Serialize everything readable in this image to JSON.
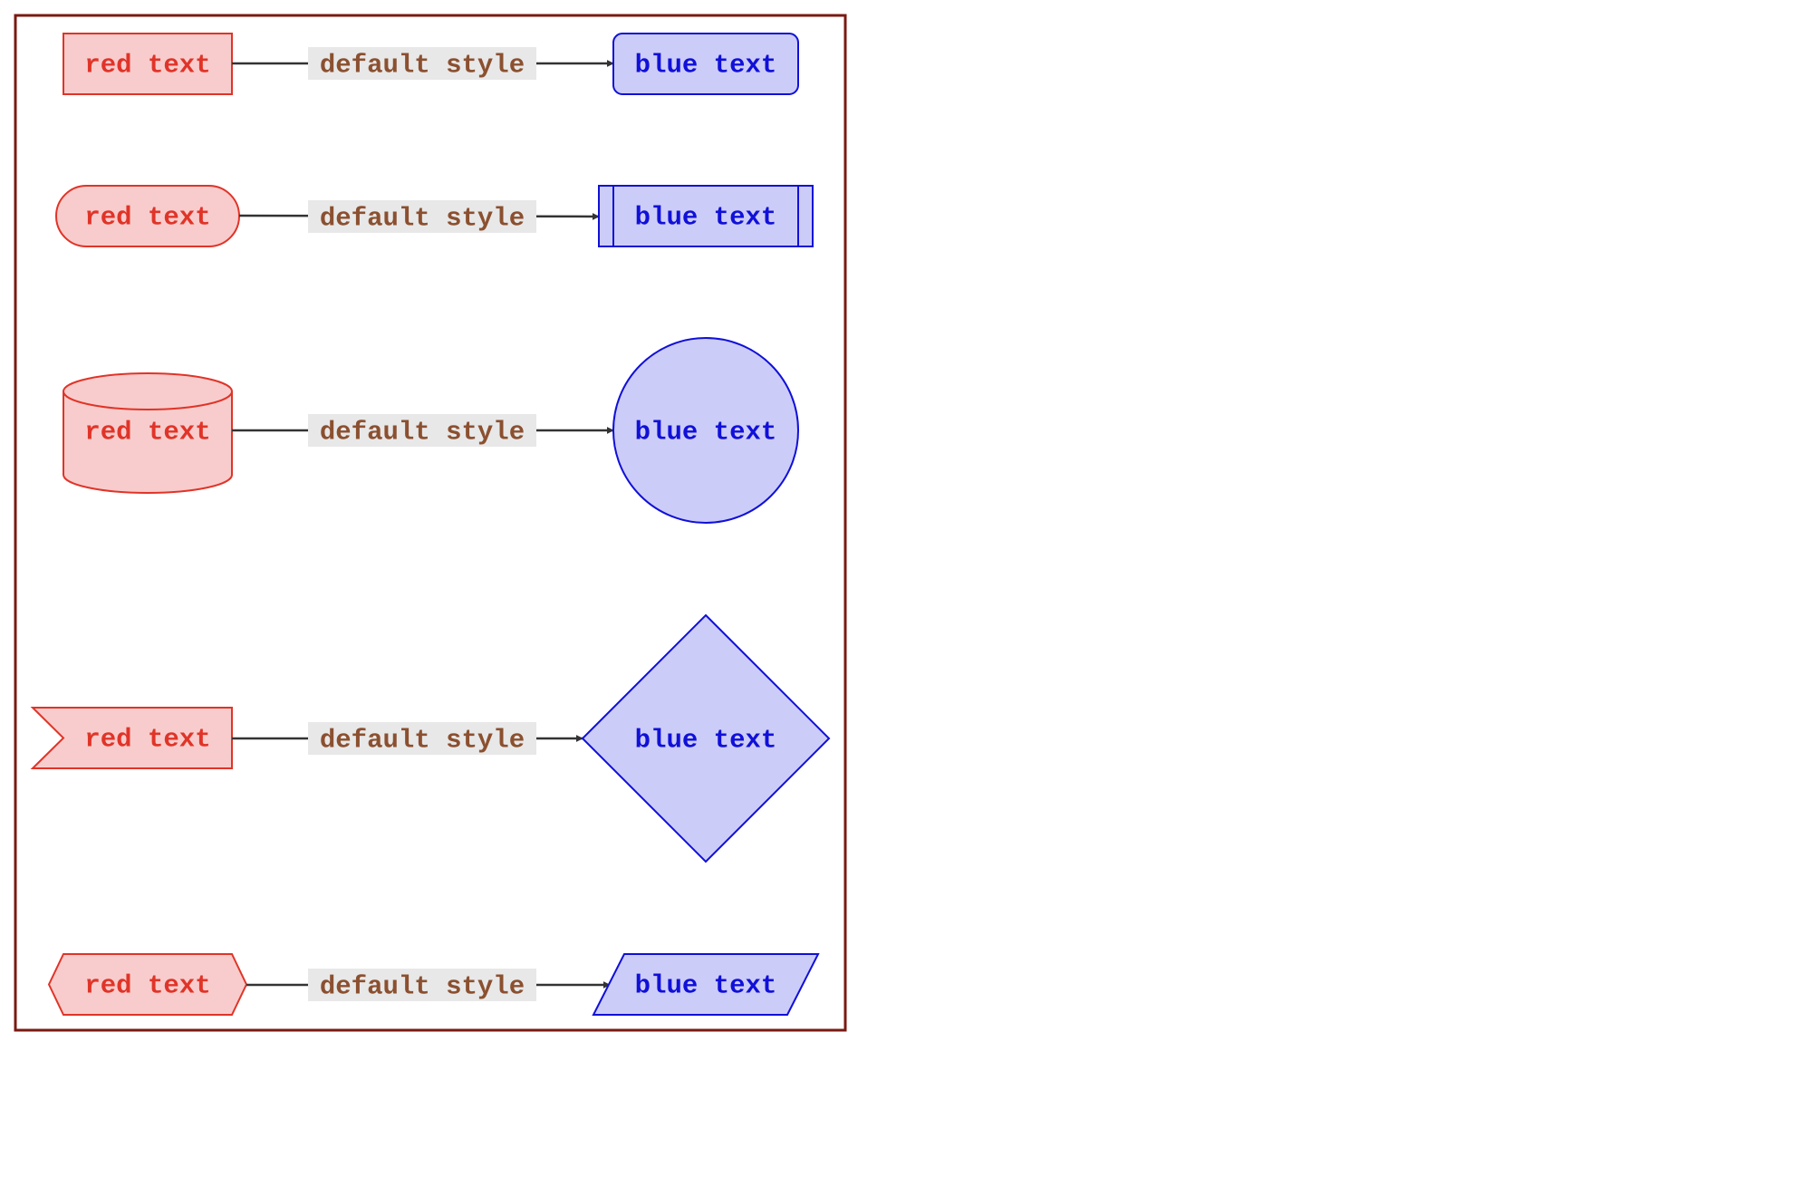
{
  "colors": {
    "frame_border": "#7a1a12",
    "red_fill": "#f8cccc",
    "red_stroke": "#e03428",
    "red_text": "#e03428",
    "blue_fill": "#ccccf8",
    "blue_stroke": "#1010d8",
    "blue_text": "#1010d8",
    "edge_line": "#333333",
    "edge_label_bg": "#e8e8e8",
    "edge_label_text": "#8b5030"
  },
  "rows": [
    {
      "source": {
        "label": "red text",
        "shape": "rectangle"
      },
      "edge": {
        "label": "default style"
      },
      "target": {
        "label": "blue text",
        "shape": "rounded-rectangle"
      }
    },
    {
      "source": {
        "label": "red text",
        "shape": "stadium"
      },
      "edge": {
        "label": "default style"
      },
      "target": {
        "label": "blue text",
        "shape": "subroutine"
      }
    },
    {
      "source": {
        "label": "red text",
        "shape": "cylinder"
      },
      "edge": {
        "label": "default style"
      },
      "target": {
        "label": "blue text",
        "shape": "circle"
      }
    },
    {
      "source": {
        "label": "red text",
        "shape": "asymmetric"
      },
      "edge": {
        "label": "default style"
      },
      "target": {
        "label": "blue text",
        "shape": "rhombus"
      }
    },
    {
      "source": {
        "label": "red text",
        "shape": "hexagon"
      },
      "edge": {
        "label": "default style"
      },
      "target": {
        "label": "blue text",
        "shape": "parallelogram"
      }
    }
  ]
}
